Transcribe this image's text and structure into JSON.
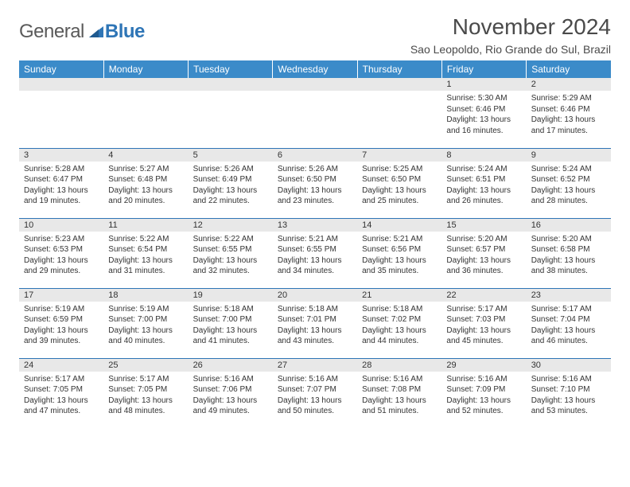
{
  "logo": {
    "text1": "General",
    "text2": "Blue"
  },
  "title": "November 2024",
  "location": "Sao Leopoldo, Rio Grande do Sul, Brazil",
  "colors": {
    "header_bg": "#3b8bc9",
    "header_text": "#ffffff",
    "row_border": "#2e75b6",
    "daynum_bg": "#e8e8e8",
    "text": "#333333",
    "logo_gray": "#5a5a5a",
    "logo_blue": "#2e75b6"
  },
  "weekdays": [
    "Sunday",
    "Monday",
    "Tuesday",
    "Wednesday",
    "Thursday",
    "Friday",
    "Saturday"
  ],
  "weeks": [
    [
      null,
      null,
      null,
      null,
      null,
      {
        "n": "1",
        "sr": "5:30 AM",
        "ss": "6:46 PM",
        "dl": "13 hours and 16 minutes."
      },
      {
        "n": "2",
        "sr": "5:29 AM",
        "ss": "6:46 PM",
        "dl": "13 hours and 17 minutes."
      }
    ],
    [
      {
        "n": "3",
        "sr": "5:28 AM",
        "ss": "6:47 PM",
        "dl": "13 hours and 19 minutes."
      },
      {
        "n": "4",
        "sr": "5:27 AM",
        "ss": "6:48 PM",
        "dl": "13 hours and 20 minutes."
      },
      {
        "n": "5",
        "sr": "5:26 AM",
        "ss": "6:49 PM",
        "dl": "13 hours and 22 minutes."
      },
      {
        "n": "6",
        "sr": "5:26 AM",
        "ss": "6:50 PM",
        "dl": "13 hours and 23 minutes."
      },
      {
        "n": "7",
        "sr": "5:25 AM",
        "ss": "6:50 PM",
        "dl": "13 hours and 25 minutes."
      },
      {
        "n": "8",
        "sr": "5:24 AM",
        "ss": "6:51 PM",
        "dl": "13 hours and 26 minutes."
      },
      {
        "n": "9",
        "sr": "5:24 AM",
        "ss": "6:52 PM",
        "dl": "13 hours and 28 minutes."
      }
    ],
    [
      {
        "n": "10",
        "sr": "5:23 AM",
        "ss": "6:53 PM",
        "dl": "13 hours and 29 minutes."
      },
      {
        "n": "11",
        "sr": "5:22 AM",
        "ss": "6:54 PM",
        "dl": "13 hours and 31 minutes."
      },
      {
        "n": "12",
        "sr": "5:22 AM",
        "ss": "6:55 PM",
        "dl": "13 hours and 32 minutes."
      },
      {
        "n": "13",
        "sr": "5:21 AM",
        "ss": "6:55 PM",
        "dl": "13 hours and 34 minutes."
      },
      {
        "n": "14",
        "sr": "5:21 AM",
        "ss": "6:56 PM",
        "dl": "13 hours and 35 minutes."
      },
      {
        "n": "15",
        "sr": "5:20 AM",
        "ss": "6:57 PM",
        "dl": "13 hours and 36 minutes."
      },
      {
        "n": "16",
        "sr": "5:20 AM",
        "ss": "6:58 PM",
        "dl": "13 hours and 38 minutes."
      }
    ],
    [
      {
        "n": "17",
        "sr": "5:19 AM",
        "ss": "6:59 PM",
        "dl": "13 hours and 39 minutes."
      },
      {
        "n": "18",
        "sr": "5:19 AM",
        "ss": "7:00 PM",
        "dl": "13 hours and 40 minutes."
      },
      {
        "n": "19",
        "sr": "5:18 AM",
        "ss": "7:00 PM",
        "dl": "13 hours and 41 minutes."
      },
      {
        "n": "20",
        "sr": "5:18 AM",
        "ss": "7:01 PM",
        "dl": "13 hours and 43 minutes."
      },
      {
        "n": "21",
        "sr": "5:18 AM",
        "ss": "7:02 PM",
        "dl": "13 hours and 44 minutes."
      },
      {
        "n": "22",
        "sr": "5:17 AM",
        "ss": "7:03 PM",
        "dl": "13 hours and 45 minutes."
      },
      {
        "n": "23",
        "sr": "5:17 AM",
        "ss": "7:04 PM",
        "dl": "13 hours and 46 minutes."
      }
    ],
    [
      {
        "n": "24",
        "sr": "5:17 AM",
        "ss": "7:05 PM",
        "dl": "13 hours and 47 minutes."
      },
      {
        "n": "25",
        "sr": "5:17 AM",
        "ss": "7:05 PM",
        "dl": "13 hours and 48 minutes."
      },
      {
        "n": "26",
        "sr": "5:16 AM",
        "ss": "7:06 PM",
        "dl": "13 hours and 49 minutes."
      },
      {
        "n": "27",
        "sr": "5:16 AM",
        "ss": "7:07 PM",
        "dl": "13 hours and 50 minutes."
      },
      {
        "n": "28",
        "sr": "5:16 AM",
        "ss": "7:08 PM",
        "dl": "13 hours and 51 minutes."
      },
      {
        "n": "29",
        "sr": "5:16 AM",
        "ss": "7:09 PM",
        "dl": "13 hours and 52 minutes."
      },
      {
        "n": "30",
        "sr": "5:16 AM",
        "ss": "7:10 PM",
        "dl": "13 hours and 53 minutes."
      }
    ]
  ],
  "labels": {
    "sunrise": "Sunrise:",
    "sunset": "Sunset:",
    "daylight": "Daylight:"
  }
}
